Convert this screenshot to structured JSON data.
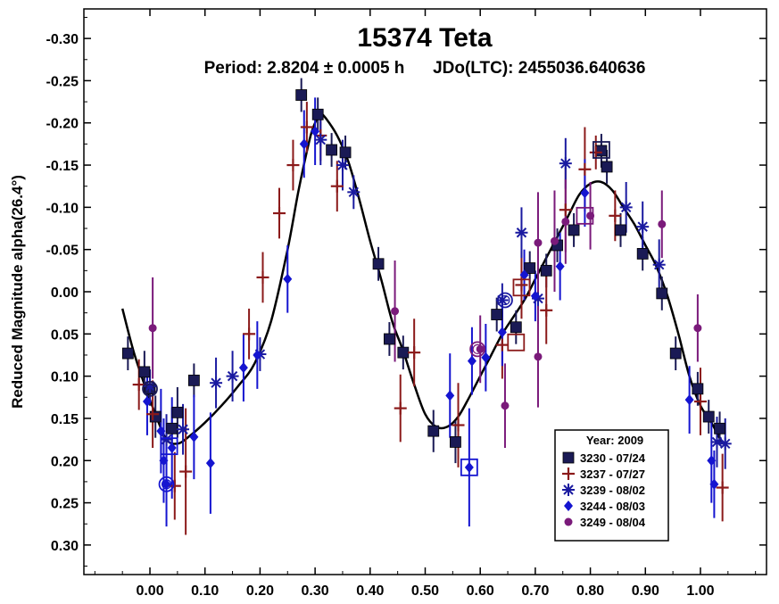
{
  "chart_data": {
    "type": "scatter",
    "title": "15374 Teta",
    "subtitle": "Period: 2.8204 ± 0.0005 h      JDo(LTC): 2455036.640636",
    "xlabel": "",
    "ylabel": "Reduced Magnitude alpha(26.4°)",
    "xlim": [
      -0.12,
      1.12
    ],
    "ylim": [
      -0.335,
      0.335
    ],
    "y_inverted": true,
    "x_ticks": [
      "0.00",
      "0.10",
      "0.20",
      "0.30",
      "0.40",
      "0.50",
      "0.60",
      "0.70",
      "0.80",
      "0.90",
      "1.00"
    ],
    "x_tick_values": [
      0,
      0.1,
      0.2,
      0.3,
      0.4,
      0.5,
      0.6,
      0.7,
      0.8,
      0.9,
      1.0
    ],
    "y_ticks": [
      "-0.30",
      "-0.25",
      "-0.20",
      "-0.15",
      "-0.10",
      "-0.05",
      "0.00",
      "0.05",
      "0.10",
      "0.15",
      "0.20",
      "0.25",
      "0.30"
    ],
    "y_tick_values": [
      -0.3,
      -0.25,
      -0.2,
      -0.15,
      -0.1,
      -0.05,
      0,
      0.05,
      0.1,
      0.15,
      0.2,
      0.25,
      0.3
    ],
    "legend": {
      "title": "Year: 2009",
      "placement": "bottom-right"
    },
    "fit_curve": {
      "color": "#000000",
      "points": [
        [
          -0.05,
          0.02
        ],
        [
          -0.03,
          0.07
        ],
        [
          -0.01,
          0.11
        ],
        [
          0.01,
          0.145
        ],
        [
          0.03,
          0.175
        ],
        [
          0.05,
          0.18
        ],
        [
          0.07,
          0.172
        ],
        [
          0.1,
          0.155
        ],
        [
          0.13,
          0.135
        ],
        [
          0.16,
          0.112
        ],
        [
          0.19,
          0.085
        ],
        [
          0.22,
          0.035
        ],
        [
          0.25,
          -0.05
        ],
        [
          0.27,
          -0.12
        ],
        [
          0.29,
          -0.18
        ],
        [
          0.3,
          -0.2
        ],
        [
          0.31,
          -0.21
        ],
        [
          0.32,
          -0.205
        ],
        [
          0.34,
          -0.185
        ],
        [
          0.36,
          -0.155
        ],
        [
          0.38,
          -0.11
        ],
        [
          0.4,
          -0.06
        ],
        [
          0.42,
          -0.015
        ],
        [
          0.44,
          0.035
        ],
        [
          0.46,
          0.07
        ],
        [
          0.48,
          0.11
        ],
        [
          0.5,
          0.145
        ],
        [
          0.52,
          0.16
        ],
        [
          0.54,
          0.16
        ],
        [
          0.56,
          0.148
        ],
        [
          0.58,
          0.125
        ],
        [
          0.6,
          0.1
        ],
        [
          0.62,
          0.075
        ],
        [
          0.64,
          0.05
        ],
        [
          0.66,
          0.03
        ],
        [
          0.68,
          0.01
        ],
        [
          0.7,
          -0.015
        ],
        [
          0.72,
          -0.04
        ],
        [
          0.74,
          -0.065
        ],
        [
          0.76,
          -0.09
        ],
        [
          0.78,
          -0.115
        ],
        [
          0.8,
          -0.128
        ],
        [
          0.82,
          -0.13
        ],
        [
          0.84,
          -0.12
        ],
        [
          0.86,
          -0.1
        ],
        [
          0.88,
          -0.08
        ],
        [
          0.9,
          -0.055
        ],
        [
          0.92,
          -0.03
        ],
        [
          0.94,
          0.005
        ],
        [
          0.96,
          0.05
        ],
        [
          0.98,
          0.1
        ],
        [
          1.0,
          0.135
        ],
        [
          1.02,
          0.155
        ],
        [
          1.04,
          0.18
        ]
      ]
    },
    "series": [
      {
        "name": "3230 - 07/24",
        "marker": "square",
        "color": "#1a1a55",
        "points": [
          {
            "x": -0.04,
            "y": 0.073,
            "e": 0.02
          },
          {
            "x": -0.01,
            "y": 0.095,
            "e": 0.025
          },
          {
            "x": 0.0,
            "y": 0.115,
            "e": 0.02
          },
          {
            "x": 0.01,
            "y": 0.148,
            "e": 0.025
          },
          {
            "x": 0.04,
            "y": 0.162,
            "e": 0.025
          },
          {
            "x": 0.05,
            "y": 0.143,
            "e": 0.03
          },
          {
            "x": 0.08,
            "y": 0.105,
            "e": 0.02
          },
          {
            "x": 0.275,
            "y": -0.233,
            "e": 0.02
          },
          {
            "x": 0.305,
            "y": -0.21,
            "e": 0.02
          },
          {
            "x": 0.33,
            "y": -0.168,
            "e": 0.02
          },
          {
            "x": 0.355,
            "y": -0.165,
            "e": 0.02
          },
          {
            "x": 0.415,
            "y": -0.033,
            "e": 0.02
          },
          {
            "x": 0.435,
            "y": 0.056,
            "e": 0.02
          },
          {
            "x": 0.46,
            "y": 0.072,
            "e": 0.02
          },
          {
            "x": 0.515,
            "y": 0.165,
            "e": 0.025
          },
          {
            "x": 0.555,
            "y": 0.178,
            "e": 0.025
          },
          {
            "x": 0.63,
            "y": 0.027,
            "e": 0.02
          },
          {
            "x": 0.665,
            "y": 0.042,
            "e": 0.02
          },
          {
            "x": 0.69,
            "y": -0.028,
            "e": 0.02
          },
          {
            "x": 0.72,
            "y": -0.025,
            "e": 0.02
          },
          {
            "x": 0.74,
            "y": -0.055,
            "e": 0.02
          },
          {
            "x": 0.77,
            "y": -0.073,
            "e": 0.02
          },
          {
            "x": 0.82,
            "y": -0.167,
            "e": 0.02
          },
          {
            "x": 0.83,
            "y": -0.148,
            "e": 0.02
          },
          {
            "x": 0.855,
            "y": -0.073,
            "e": 0.02
          },
          {
            "x": 0.895,
            "y": -0.045,
            "e": 0.02
          },
          {
            "x": 0.93,
            "y": 0.002,
            "e": 0.02
          },
          {
            "x": 0.955,
            "y": 0.073,
            "e": 0.02
          },
          {
            "x": 0.995,
            "y": 0.115,
            "e": 0.02
          },
          {
            "x": 1.015,
            "y": 0.148,
            "e": 0.02
          },
          {
            "x": 1.035,
            "y": 0.162,
            "e": 0.02
          }
        ]
      },
      {
        "name": "3237 - 07/27",
        "marker": "plus",
        "color": "#8b1a1a",
        "points": [
          {
            "x": -0.02,
            "y": 0.11,
            "e": 0.03
          },
          {
            "x": 0.005,
            "y": 0.145,
            "e": 0.04
          },
          {
            "x": 0.045,
            "y": 0.23,
            "e": 0.04
          },
          {
            "x": 0.065,
            "y": 0.213,
            "e": 0.075
          },
          {
            "x": 0.18,
            "y": 0.05,
            "e": 0.03
          },
          {
            "x": 0.205,
            "y": -0.017,
            "e": 0.03
          },
          {
            "x": 0.235,
            "y": -0.093,
            "e": 0.03
          },
          {
            "x": 0.26,
            "y": -0.15,
            "e": 0.03
          },
          {
            "x": 0.285,
            "y": -0.195,
            "e": 0.03
          },
          {
            "x": 0.31,
            "y": -0.185,
            "e": 0.03
          },
          {
            "x": 0.34,
            "y": -0.125,
            "e": 0.03
          },
          {
            "x": 0.455,
            "y": 0.138,
            "e": 0.04
          },
          {
            "x": 0.48,
            "y": 0.072,
            "e": 0.04
          },
          {
            "x": 0.56,
            "y": 0.158,
            "e": 0.05
          },
          {
            "x": 0.64,
            "y": 0.063,
            "e": 0.04
          },
          {
            "x": 0.675,
            "y": -0.008,
            "e": 0.04
          },
          {
            "x": 0.72,
            "y": 0.022,
            "e": 0.04
          },
          {
            "x": 0.755,
            "y": -0.097,
            "e": 0.05
          },
          {
            "x": 0.79,
            "y": -0.145,
            "e": 0.05
          },
          {
            "x": 0.81,
            "y": -0.165,
            "e": 0.02
          },
          {
            "x": 0.845,
            "y": -0.09,
            "e": 0.03
          },
          {
            "x": 1.0,
            "y": 0.13,
            "e": 0.04
          },
          {
            "x": 1.04,
            "y": 0.232,
            "e": 0.04
          }
        ]
      },
      {
        "name": "3239 - 08/02",
        "marker": "asterisk",
        "color": "#1a1aa0",
        "points": [
          {
            "x": 0.0,
            "y": 0.112,
            "e": 0.02
          },
          {
            "x": 0.03,
            "y": 0.175,
            "e": 0.03
          },
          {
            "x": 0.06,
            "y": 0.163,
            "e": 0.03
          },
          {
            "x": 0.12,
            "y": 0.108,
            "e": 0.03
          },
          {
            "x": 0.15,
            "y": 0.1,
            "e": 0.03
          },
          {
            "x": 0.2,
            "y": 0.074,
            "e": 0.02
          },
          {
            "x": 0.31,
            "y": -0.18,
            "e": 0.03
          },
          {
            "x": 0.35,
            "y": -0.15,
            "e": 0.03
          },
          {
            "x": 0.37,
            "y": -0.118,
            "e": 0.02
          },
          {
            "x": 0.64,
            "y": 0.01,
            "e": 0.02
          },
          {
            "x": 0.675,
            "y": -0.07,
            "e": 0.03
          },
          {
            "x": 0.705,
            "y": 0.008,
            "e": 0.03
          },
          {
            "x": 0.755,
            "y": -0.152,
            "e": 0.03
          },
          {
            "x": 0.865,
            "y": -0.1,
            "e": 0.03
          },
          {
            "x": 0.895,
            "y": -0.077,
            "e": 0.03
          },
          {
            "x": 0.925,
            "y": -0.032,
            "e": 0.03
          },
          {
            "x": 1.03,
            "y": 0.178,
            "e": 0.03
          },
          {
            "x": 1.045,
            "y": 0.18,
            "e": 0.03
          }
        ]
      },
      {
        "name": "3244 - 08/03",
        "marker": "diamond",
        "color": "#1515d0",
        "points": [
          {
            "x": -0.005,
            "y": 0.13,
            "e": 0.04
          },
          {
            "x": 0.02,
            "y": 0.165,
            "e": 0.05
          },
          {
            "x": 0.025,
            "y": 0.2,
            "e": 0.05
          },
          {
            "x": 0.03,
            "y": 0.228,
            "e": 0.05
          },
          {
            "x": 0.04,
            "y": 0.185,
            "e": 0.06
          },
          {
            "x": 0.08,
            "y": 0.172,
            "e": 0.05
          },
          {
            "x": 0.11,
            "y": 0.203,
            "e": 0.06
          },
          {
            "x": 0.17,
            "y": 0.09,
            "e": 0.04
          },
          {
            "x": 0.195,
            "y": 0.075,
            "e": 0.04
          },
          {
            "x": 0.25,
            "y": -0.015,
            "e": 0.04
          },
          {
            "x": 0.28,
            "y": -0.175,
            "e": 0.04
          },
          {
            "x": 0.3,
            "y": -0.19,
            "e": 0.04
          },
          {
            "x": 0.545,
            "y": 0.123,
            "e": 0.05
          },
          {
            "x": 0.58,
            "y": 0.208,
            "e": 0.07
          },
          {
            "x": 0.585,
            "y": 0.082,
            "e": 0.04
          },
          {
            "x": 0.61,
            "y": 0.078,
            "e": 0.04
          },
          {
            "x": 0.64,
            "y": 0.048,
            "e": 0.04
          },
          {
            "x": 0.68,
            "y": -0.02,
            "e": 0.03
          },
          {
            "x": 0.7,
            "y": 0.005,
            "e": 0.03
          },
          {
            "x": 0.745,
            "y": -0.03,
            "e": 0.04
          },
          {
            "x": 0.79,
            "y": -0.117,
            "e": 0.04
          },
          {
            "x": 0.98,
            "y": 0.128,
            "e": 0.04
          },
          {
            "x": 1.02,
            "y": 0.2,
            "e": 0.05
          },
          {
            "x": 1.025,
            "y": 0.228,
            "e": 0.04
          }
        ]
      },
      {
        "name": "3249 - 08/04",
        "marker": "circle",
        "color": "#7a1a7a",
        "points": [
          {
            "x": 0.005,
            "y": 0.043,
            "e": 0.06
          },
          {
            "x": 0.445,
            "y": 0.023,
            "e": 0.06
          },
          {
            "x": 0.6,
            "y": 0.068,
            "e": 0.04
          },
          {
            "x": 0.645,
            "y": 0.135,
            "e": 0.05
          },
          {
            "x": 0.705,
            "y": -0.058,
            "e": 0.06
          },
          {
            "x": 0.705,
            "y": 0.077,
            "e": 0.06
          },
          {
            "x": 0.735,
            "y": -0.06,
            "e": 0.06
          },
          {
            "x": 0.755,
            "y": -0.083,
            "e": 0.05
          },
          {
            "x": 0.8,
            "y": -0.09,
            "e": 0.04
          },
          {
            "x": 0.93,
            "y": -0.08,
            "e": 0.04
          },
          {
            "x": 0.995,
            "y": 0.043,
            "e": 0.04
          }
        ]
      }
    ],
    "highlights": [
      {
        "x": 0.0,
        "y": 0.115,
        "shape": "circle",
        "color": "#1a1a55"
      },
      {
        "x": 0.03,
        "y": 0.228,
        "shape": "circle",
        "color": "#1515d0"
      },
      {
        "x": 0.035,
        "y": 0.183,
        "shape": "square",
        "color": "#1515d0"
      },
      {
        "x": 0.58,
        "y": 0.208,
        "shape": "square",
        "color": "#1515d0"
      },
      {
        "x": 0.595,
        "y": 0.068,
        "shape": "circle",
        "color": "#7a1a7a"
      },
      {
        "x": 0.645,
        "y": 0.01,
        "shape": "circle",
        "color": "#1a1aa0"
      },
      {
        "x": 0.665,
        "y": 0.06,
        "shape": "square",
        "color": "#8b1a1a"
      },
      {
        "x": 0.675,
        "y": -0.005,
        "shape": "square",
        "color": "#8b1a1a"
      },
      {
        "x": 0.79,
        "y": -0.09,
        "shape": "square",
        "color": "#7a1a7a"
      },
      {
        "x": 0.82,
        "y": -0.168,
        "shape": "square",
        "color": "#1a1a55"
      }
    ]
  }
}
